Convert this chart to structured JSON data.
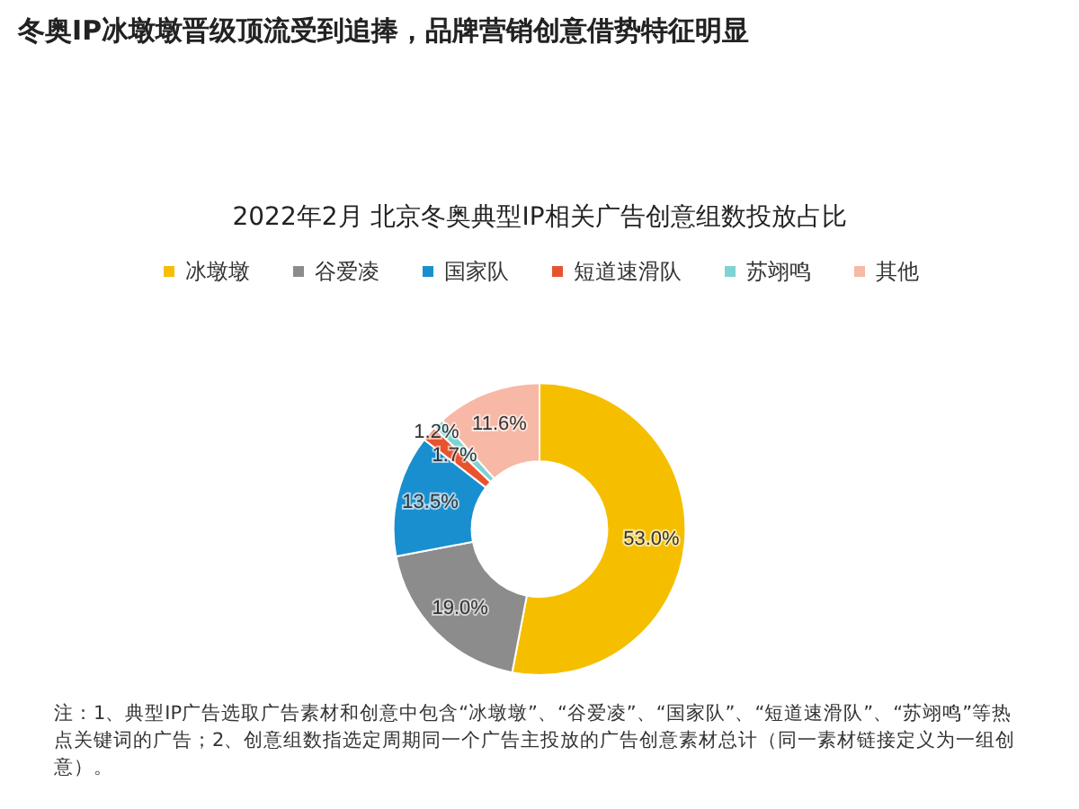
{
  "chart_data": {
    "type": "donut",
    "title": "冬奥IP冰墩墩晋级顶流受到追捧，品牌营销创意借势特征明显",
    "subtitle": "2022年2月 北京冬奥典型IP相关广告创意组数投放占比",
    "categories": [
      "冰墩墩",
      "谷爱凌",
      "国家队",
      "短道速滑队",
      "苏翊鸣",
      "其他"
    ],
    "values": [
      53.0,
      19.0,
      13.5,
      1.7,
      1.2,
      11.6
    ],
    "value_labels": [
      "53.0%",
      "19.0%",
      "13.5%",
      "1.7%",
      "1.2%",
      "11.6%"
    ],
    "colors": [
      "#f5bf00",
      "#8c8c8c",
      "#1a8fd0",
      "#e8532f",
      "#7fd3d3",
      "#f7b8a5"
    ],
    "legend": "top",
    "annotations": [
      "注：1、典型IP广告选取广告素材和创意中包含“冰墩墩”、“谷爱凌”、“国家队”、“短道速滑队”、“苏翊鸣”等热点关键词的广告；2、创意组数指选定周期同一个广告主投放的广告创意素材总计（同一素材链接定义为一组创意）。"
    ]
  }
}
